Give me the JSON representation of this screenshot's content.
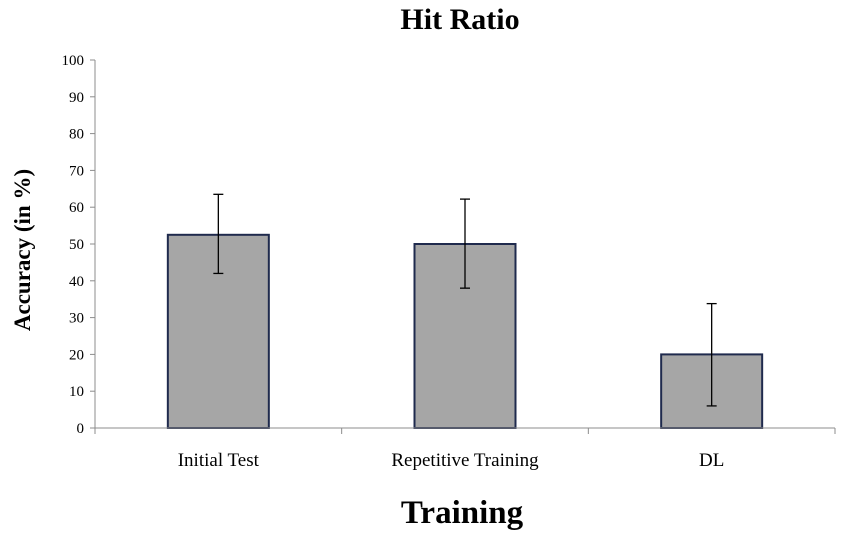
{
  "chart_data": {
    "type": "bar",
    "title": "Hit Ratio",
    "xlabel": "Training",
    "ylabel": "Accuracy (in %)",
    "categories": [
      "Initial Test",
      "Repetitive Training",
      "DL"
    ],
    "values": [
      52.5,
      50,
      20
    ],
    "error_upper": [
      63.5,
      62.2,
      33.8
    ],
    "error_lower": [
      42,
      38,
      6
    ],
    "ylim": [
      0,
      100
    ],
    "yticks": [
      "0",
      "10",
      "20",
      "30",
      "40",
      "50",
      "60",
      "70",
      "80",
      "90",
      "100"
    ],
    "grid": false,
    "legend": "none",
    "bar_fill": "#a6a6a6",
    "bar_stroke": "#1f2a4d"
  }
}
